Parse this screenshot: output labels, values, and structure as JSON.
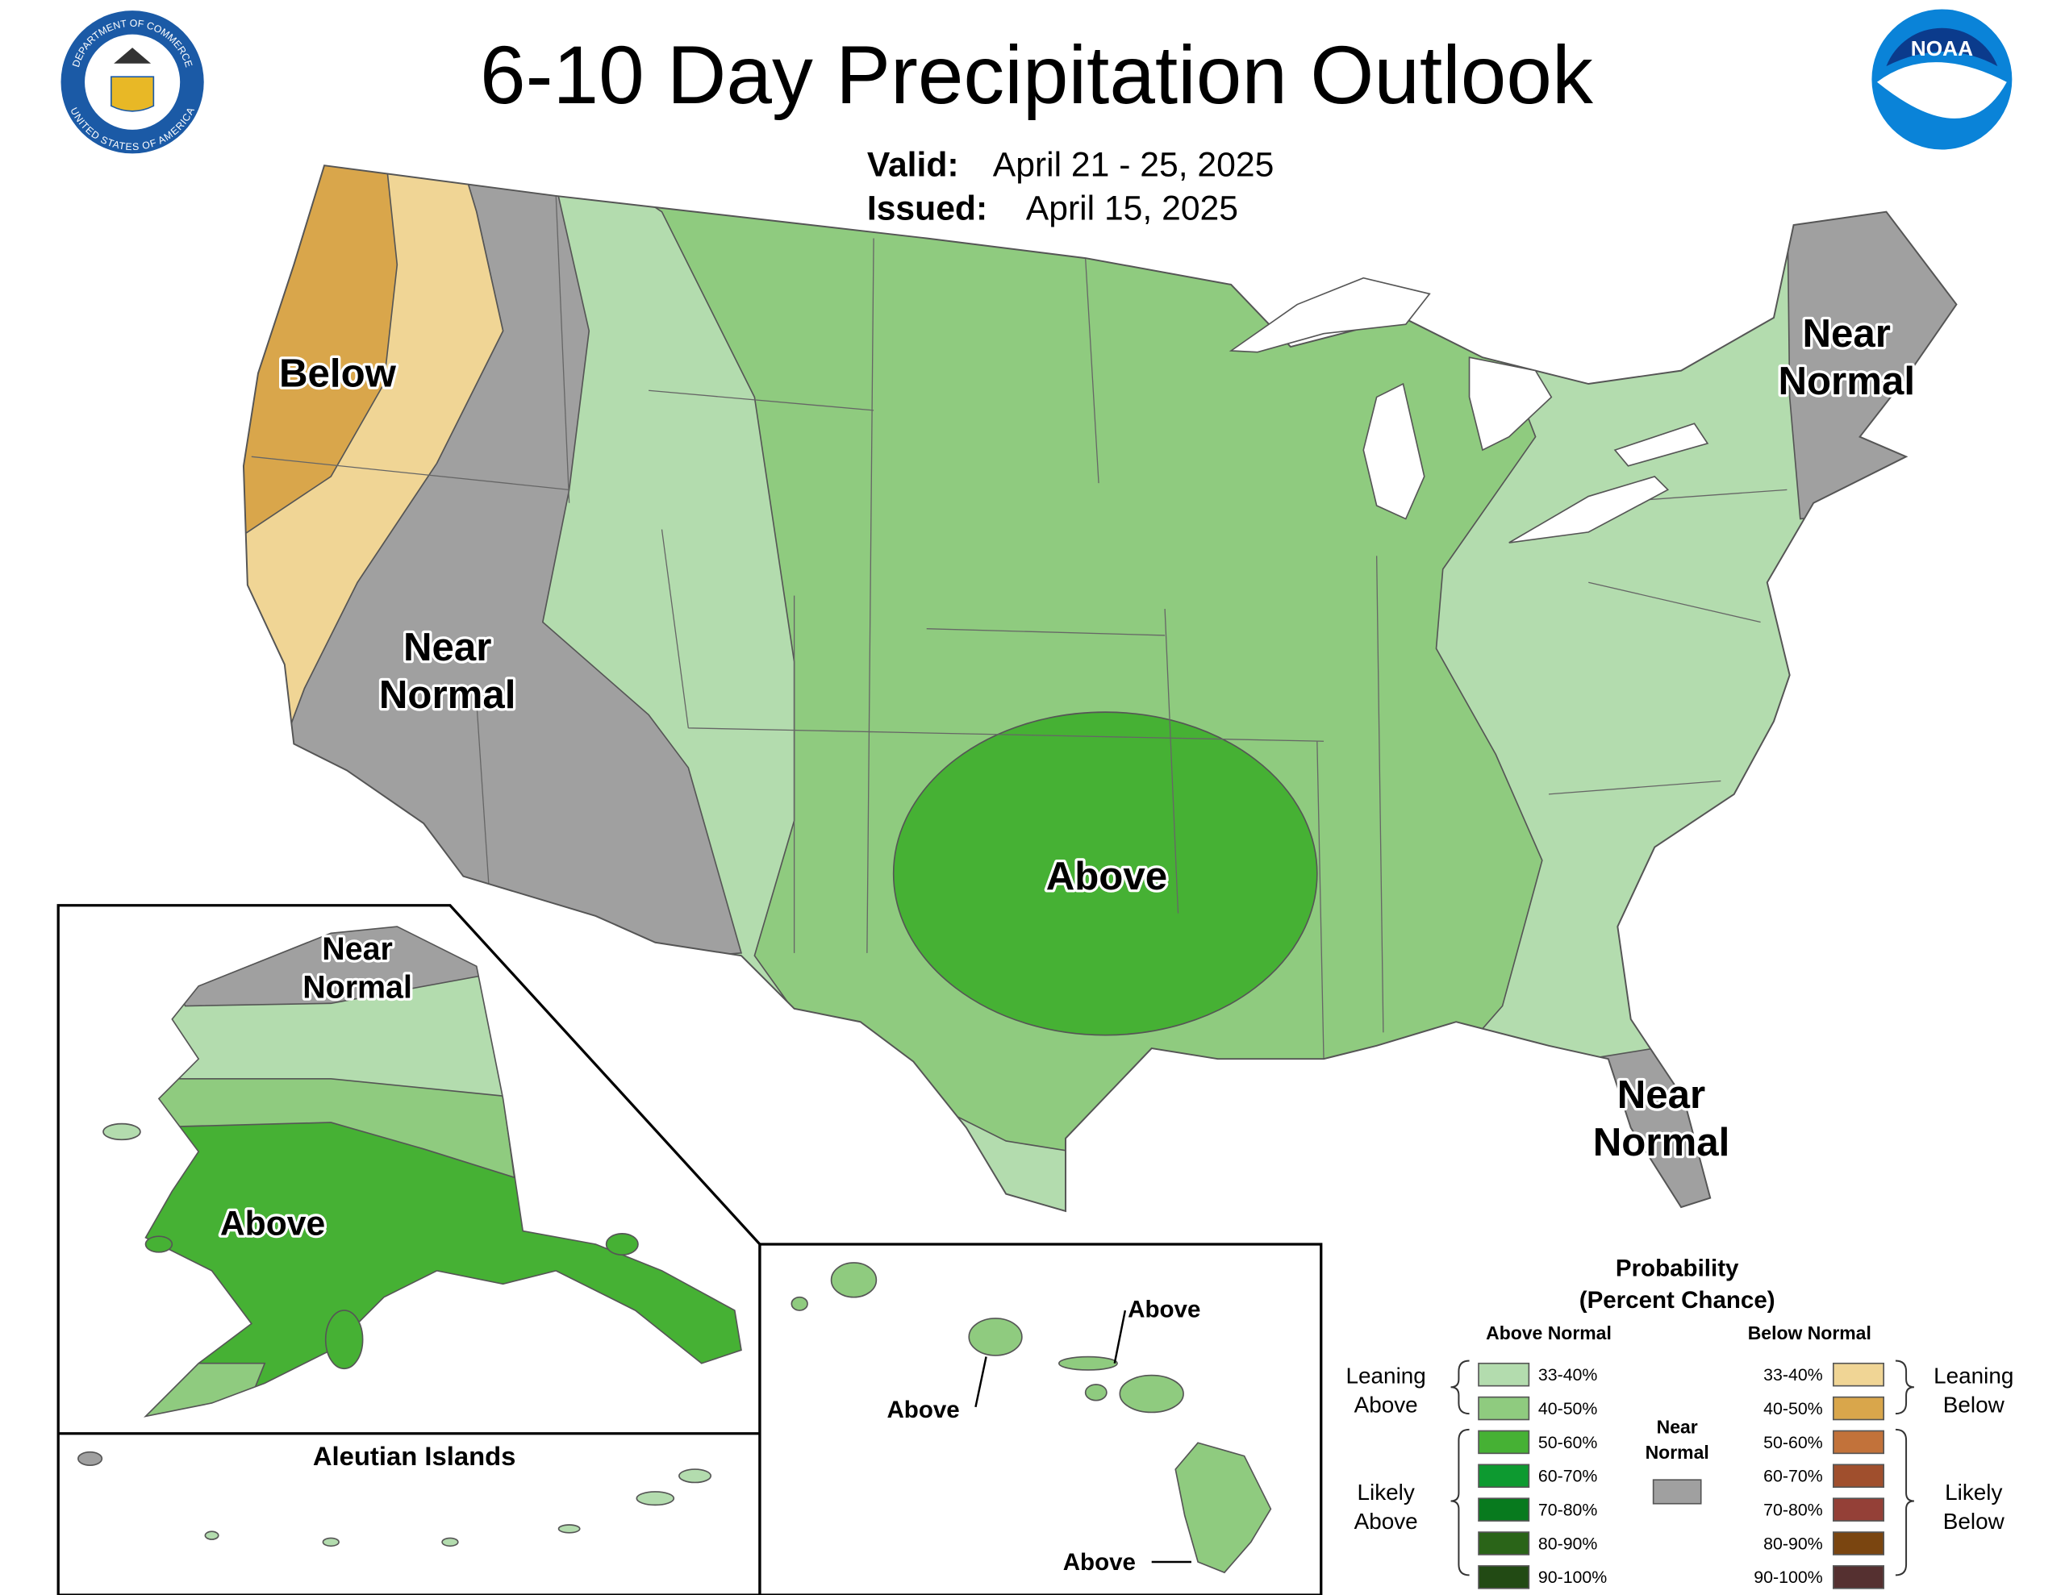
{
  "header": {
    "title": "6-10 Day Precipitation Outlook",
    "valid_label": "Valid:",
    "valid_dates": "April 21 - 25, 2025",
    "issued_label": "Issued:",
    "issued_date": "April 15, 2025"
  },
  "logos": {
    "commerce_top": "DEPARTMENT OF COMMERCE",
    "commerce_bottom": "UNITED STATES OF AMERICA",
    "noaa": "NOAA"
  },
  "map_labels": {
    "below_west": [
      "Below"
    ],
    "near_normal_west": [
      "Near",
      "Normal"
    ],
    "above_central": [
      "Above"
    ],
    "near_normal_northeast": [
      "Near",
      "Normal"
    ],
    "near_normal_florida": [
      "Near",
      "Normal"
    ]
  },
  "alaska": {
    "near_normal": [
      "Near",
      "Normal"
    ],
    "above": "Above",
    "aleutian_title": "Aleutian Islands"
  },
  "hawaii": {
    "labels": [
      "Above",
      "Above",
      "Above"
    ]
  },
  "legend": {
    "title": [
      "Probability",
      "(Percent Chance)"
    ],
    "above_header": "Above Normal",
    "below_header": "Below Normal",
    "leaning_above": [
      "Leaning",
      "Above"
    ],
    "likely_above": [
      "Likely",
      "Above"
    ],
    "leaning_below": [
      "Leaning",
      "Below"
    ],
    "likely_below": [
      "Likely",
      "Below"
    ],
    "near_normal": [
      "Near",
      "Normal"
    ],
    "near_color": "#a0a0a0",
    "above": [
      {
        "label": "33-40%",
        "color": "#b3dcae"
      },
      {
        "label": "40-50%",
        "color": "#8fcb7f"
      },
      {
        "label": "50-60%",
        "color": "#46b134"
      },
      {
        "label": "60-70%",
        "color": "#0d9a30"
      },
      {
        "label": "70-80%",
        "color": "#087a1e"
      },
      {
        "label": "80-90%",
        "color": "#2a6418"
      },
      {
        "label": "90-100%",
        "color": "#224a14"
      }
    ],
    "below": [
      {
        "label": "33-40%",
        "color": "#f0d595"
      },
      {
        "label": "40-50%",
        "color": "#d9a64b"
      },
      {
        "label": "50-60%",
        "color": "#c2723a"
      },
      {
        "label": "60-70%",
        "color": "#a04f2d"
      },
      {
        "label": "70-80%",
        "color": "#944037"
      },
      {
        "label": "80-90%",
        "color": "#7a4510"
      },
      {
        "label": "90-100%",
        "color": "#553030"
      }
    ]
  }
}
